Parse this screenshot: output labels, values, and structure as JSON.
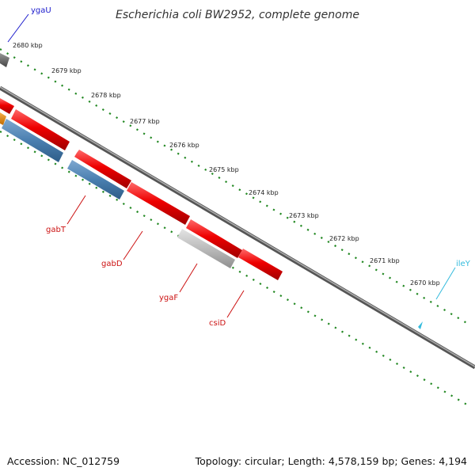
{
  "title": "Escherichia coli BW2952, complete genome",
  "footer": {
    "accession": "Accession: NC_012759",
    "summary": "Topology: circular; Length: 4,578,159 bp; Genes: 4,194"
  },
  "ticks": [
    "2680 kbp",
    "2679 kbp",
    "2678 kbp",
    "2677 kbp",
    "2676 kbp",
    "2675 kbp",
    "2674 kbp",
    "2673 kbp",
    "2672 kbp",
    "2671 kbp",
    "2670 kbp"
  ],
  "gene_labels": [
    {
      "name": "ygaU",
      "color": "#1a1acc"
    },
    {
      "name": "gabT",
      "color": "#cc1111"
    },
    {
      "name": "gabD",
      "color": "#cc1111"
    },
    {
      "name": "ygaF",
      "color": "#cc1111"
    },
    {
      "name": "csiD",
      "color": "#cc1111"
    },
    {
      "name": "ileY",
      "color": "#33bbdd"
    }
  ],
  "colors": {
    "forward_gene": "#ee0000",
    "reverse_gene": "#4a7fb0",
    "pseudo_gene": "#bbbbbb",
    "other_gene": "#666666",
    "orange_gene": "#e08a10",
    "ruler": "#228822",
    "backbone": "#777777"
  }
}
